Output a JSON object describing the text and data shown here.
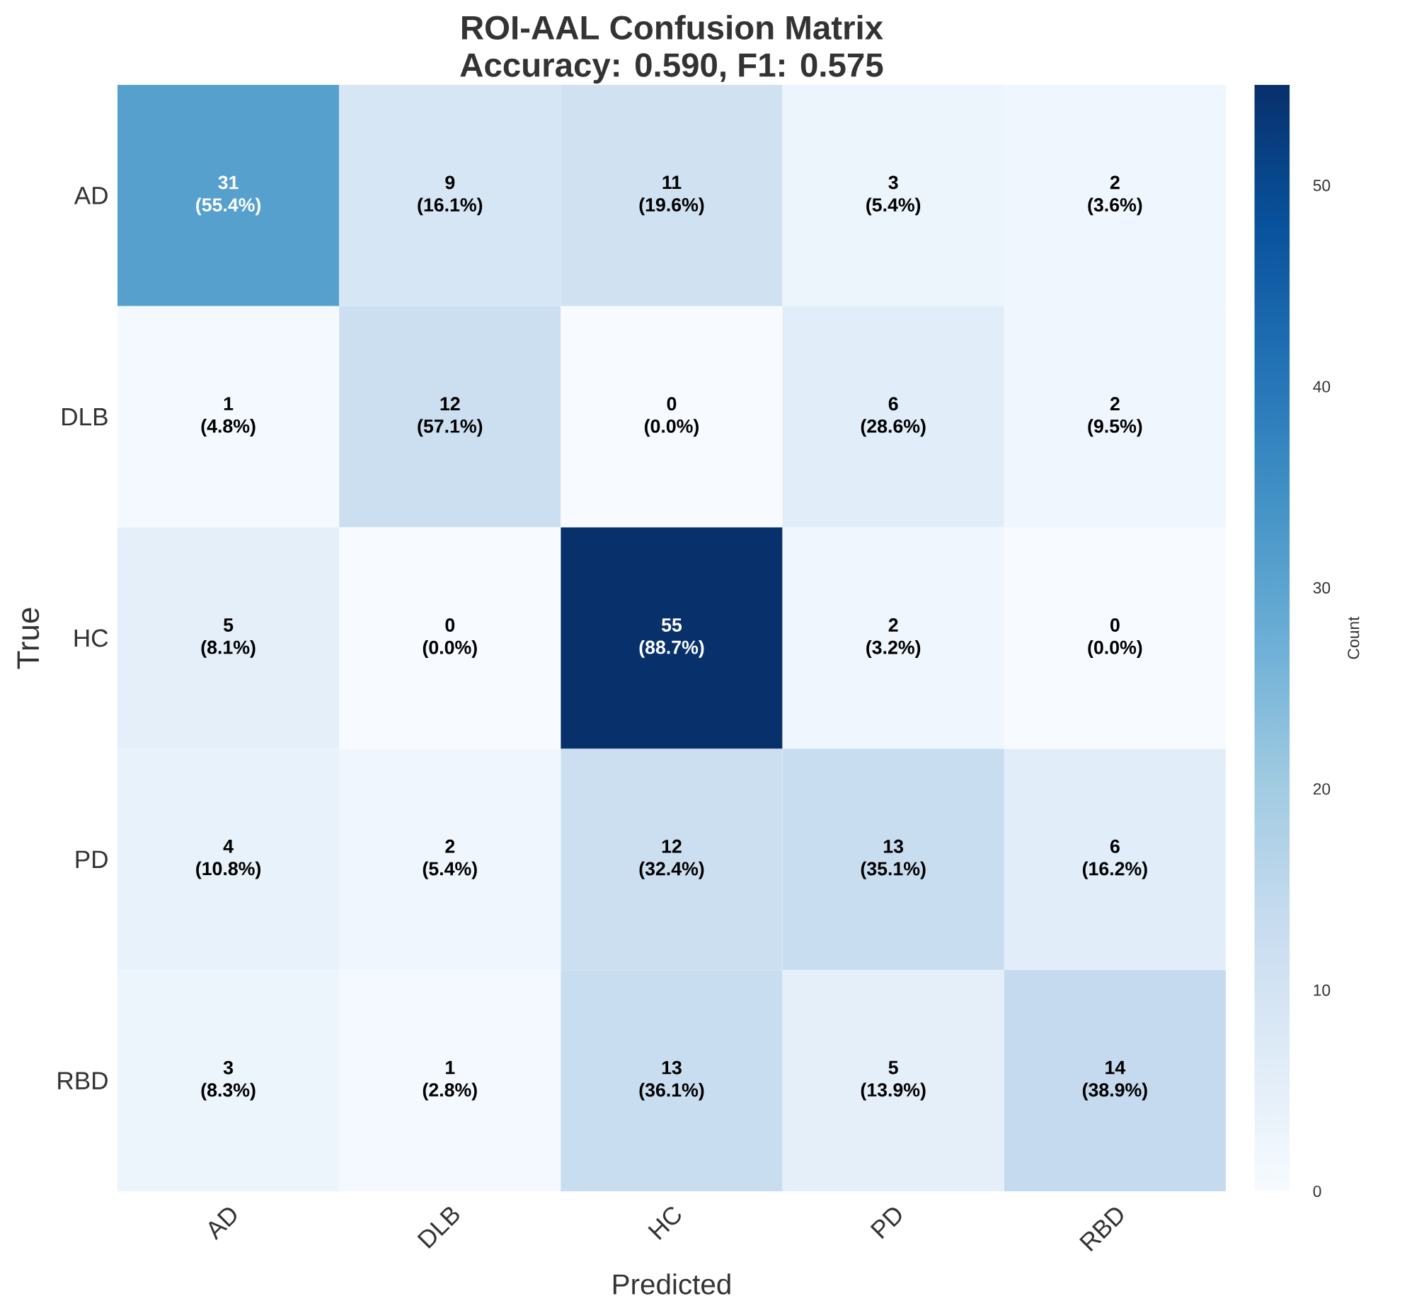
{
  "chart_data": {
    "type": "heatmap",
    "title": "ROI-AAL Confusion Matrix",
    "subtitle": "Accuracy: 0.590, F1: 0.575",
    "xlabel": "Predicted",
    "ylabel": "True",
    "clabel": "Count",
    "categories": [
      "AD",
      "DLB",
      "HC",
      "PD",
      "RBD"
    ],
    "y_categories": [
      "AD",
      "DLB",
      "HC",
      "PD",
      "RBD"
    ],
    "cells": [
      [
        31,
        9,
        11,
        3,
        2
      ],
      [
        1,
        12,
        0,
        6,
        2
      ],
      [
        5,
        0,
        55,
        2,
        0
      ],
      [
        4,
        2,
        12,
        13,
        6
      ],
      [
        3,
        1,
        13,
        5,
        14
      ]
    ],
    "cell_labels": [
      [
        "31 (55.4%)",
        "9 (16.1%)",
        "11 (19.6%)",
        "3 (5.4%)",
        "2 (3.6%)"
      ],
      [
        "1 (4.8%)",
        "12 (57.1%)",
        "0 (0.0%)",
        "6 (28.6%)",
        "2 (9.5%)"
      ],
      [
        "5 (8.1%)",
        "0 (0.0%)",
        "55 (88.7%)",
        "2 (3.2%)",
        "0 (0.0%)"
      ],
      [
        "4 (10.8%)",
        "2 (5.4%)",
        "12 (32.4%)",
        "13 (35.1%)",
        "6 (16.2%)"
      ],
      [
        "3 (8.3%)",
        "1 (2.8%)",
        "13 (36.1%)",
        "5 (13.9%)",
        "14 (38.9%)"
      ]
    ],
    "clim": [
      0,
      55
    ],
    "cticks": [
      0,
      10,
      20,
      30,
      40,
      50
    ]
  }
}
